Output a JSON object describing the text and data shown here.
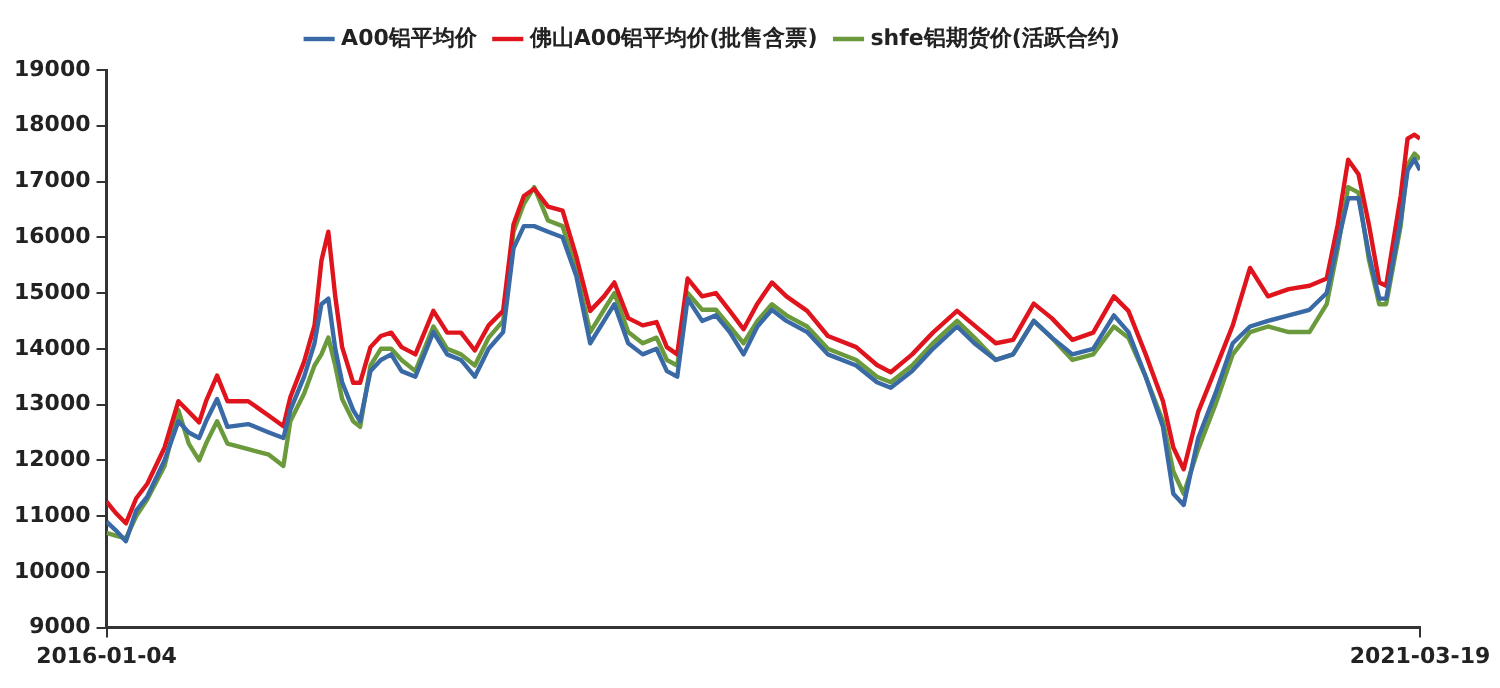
{
  "chart_data": {
    "type": "line",
    "x": [
      "2016-01-04",
      "2016-01-17",
      "2016-02-01",
      "2016-02-16",
      "2016-03-03",
      "2016-03-28",
      "2016-04-17",
      "2016-05-02",
      "2016-05-17",
      "2016-05-27",
      "2016-06-12",
      "2016-06-27",
      "2016-07-27",
      "2016-08-26",
      "2016-09-16",
      "2016-09-26",
      "2016-10-16",
      "2016-10-31",
      "2016-11-10",
      "2016-11-20",
      "2016-11-30",
      "2016-12-10",
      "2016-12-26",
      "2017-01-05",
      "2017-01-20",
      "2017-02-04",
      "2017-02-19",
      "2017-03-06",
      "2017-03-26",
      "2017-04-21",
      "2017-05-11",
      "2017-05-31",
      "2017-06-20",
      "2017-07-10",
      "2017-07-31",
      "2017-08-15",
      "2017-08-30",
      "2017-09-14",
      "2017-10-04",
      "2017-10-25",
      "2017-11-14",
      "2017-12-04",
      "2017-12-24",
      "2018-01-08",
      "2018-01-28",
      "2018-02-18",
      "2018-03-10",
      "2018-03-25",
      "2018-04-09",
      "2018-04-24",
      "2018-05-15",
      "2018-06-04",
      "2018-06-24",
      "2018-07-14",
      "2018-08-03",
      "2018-08-24",
      "2018-09-14",
      "2018-10-14",
      "2018-11-13",
      "2018-12-24",
      "2019-01-23",
      "2019-02-12",
      "2019-03-15",
      "2019-04-14",
      "2019-05-19",
      "2019-06-13",
      "2019-07-14",
      "2019-08-08",
      "2019-09-07",
      "2019-10-03",
      "2019-11-02",
      "2019-12-02",
      "2020-01-01",
      "2020-01-22",
      "2020-02-16",
      "2020-03-12",
      "2020-03-27",
      "2020-04-11",
      "2020-05-02",
      "2020-05-27",
      "2020-06-21",
      "2020-07-16",
      "2020-08-11",
      "2020-09-10",
      "2020-10-10",
      "2020-11-04",
      "2020-11-20",
      "2020-12-05",
      "2020-12-20",
      "2021-01-04",
      "2021-01-19",
      "2021-01-29",
      "2021-02-19",
      "2021-03-01",
      "2021-03-11",
      "2021-03-19"
    ],
    "series": [
      {
        "name": "A00铝平均价",
        "color": "#3a6aa5",
        "values": [
          10900,
          10750,
          10550,
          11100,
          11350,
          12000,
          12700,
          12500,
          12400,
          12700,
          13100,
          12600,
          12650,
          12500,
          12400,
          12900,
          13500,
          14100,
          14800,
          14900,
          14000,
          13400,
          12900,
          12700,
          13600,
          13800,
          13900,
          13600,
          13500,
          14300,
          13900,
          13800,
          13500,
          14000,
          14300,
          15800,
          16200,
          16200,
          16100,
          16000,
          15300,
          14100,
          14500,
          14800,
          14100,
          13900,
          14000,
          13600,
          13500,
          14900,
          14500,
          14600,
          14300,
          13900,
          14400,
          14700,
          14500,
          14300,
          13900,
          13700,
          13400,
          13300,
          13600,
          14000,
          14400,
          14100,
          13800,
          13900,
          14500,
          14200,
          13900,
          14000,
          14600,
          14300,
          13500,
          12600,
          11400,
          11200,
          12400,
          13200,
          14100,
          14400,
          14500,
          14600,
          14700,
          15000,
          15900,
          16700,
          16700,
          15700,
          14900,
          14900,
          16300,
          17200,
          17400,
          17200
        ]
      },
      {
        "name": "佛山A00铝平均价(批售含票)",
        "color": "#e0141c",
        "values": [
          11260,
          11060,
          10870,
          11320,
          11580,
          12230,
          13060,
          12870,
          12680,
          13060,
          13520,
          13060,
          13060,
          12800,
          12610,
          13130,
          13770,
          14420,
          15580,
          16100,
          14940,
          14030,
          13390,
          13390,
          14030,
          14230,
          14290,
          14030,
          13900,
          14680,
          14290,
          14290,
          13970,
          14420,
          14680,
          16230,
          16740,
          16870,
          16550,
          16480,
          15650,
          14680,
          14940,
          15190,
          14550,
          14420,
          14480,
          14030,
          13900,
          15260,
          14940,
          15000,
          14680,
          14350,
          14810,
          15190,
          14940,
          14680,
          14230,
          14030,
          13710,
          13580,
          13900,
          14290,
          14680,
          14420,
          14100,
          14160,
          14810,
          14550,
          14160,
          14290,
          14940,
          14680,
          13900,
          13060,
          12230,
          11840,
          12870,
          13640,
          14420,
          15450,
          14940,
          15070,
          15130,
          15260,
          16230,
          17390,
          17130,
          16230,
          15190,
          15130,
          16740,
          17770,
          17840,
          17770
        ]
      },
      {
        "name": "shfe铝期货价(活跃合约)",
        "color": "#6a9a3c",
        "values": [
          10700,
          10650,
          10600,
          11000,
          11300,
          11900,
          12900,
          12300,
          12000,
          12300,
          12700,
          12300,
          12200,
          12100,
          11900,
          12700,
          13200,
          13700,
          13900,
          14200,
          13700,
          13100,
          12700,
          12600,
          13700,
          14000,
          14000,
          13800,
          13600,
          14400,
          14000,
          13900,
          13700,
          14200,
          14500,
          16100,
          16600,
          16900,
          16300,
          16200,
          15400,
          14300,
          14700,
          15000,
          14300,
          14100,
          14200,
          13800,
          13700,
          15000,
          14700,
          14700,
          14400,
          14100,
          14500,
          14800,
          14600,
          14400,
          14000,
          13800,
          13500,
          13400,
          13700,
          14100,
          14500,
          14200,
          13800,
          13900,
          14500,
          14200,
          13800,
          13900,
          14400,
          14200,
          13500,
          12700,
          11800,
          11400,
          12200,
          13000,
          13900,
          14300,
          14400,
          14300,
          14300,
          14800,
          15800,
          16900,
          16800,
          15600,
          14800,
          14800,
          16200,
          17300,
          17500,
          17400
        ]
      }
    ],
    "xlim": [
      "2016-01-04",
      "2021-03-19"
    ],
    "xticks": [
      "2016-01-04",
      "2021-03-19"
    ],
    "ylim": [
      9000,
      19000
    ],
    "yticks": [
      9000,
      10000,
      11000,
      12000,
      13000,
      14000,
      15000,
      16000,
      17000,
      18000,
      19000
    ],
    "grid": false,
    "legend": "top",
    "marker": "none",
    "line_style": "solid"
  }
}
